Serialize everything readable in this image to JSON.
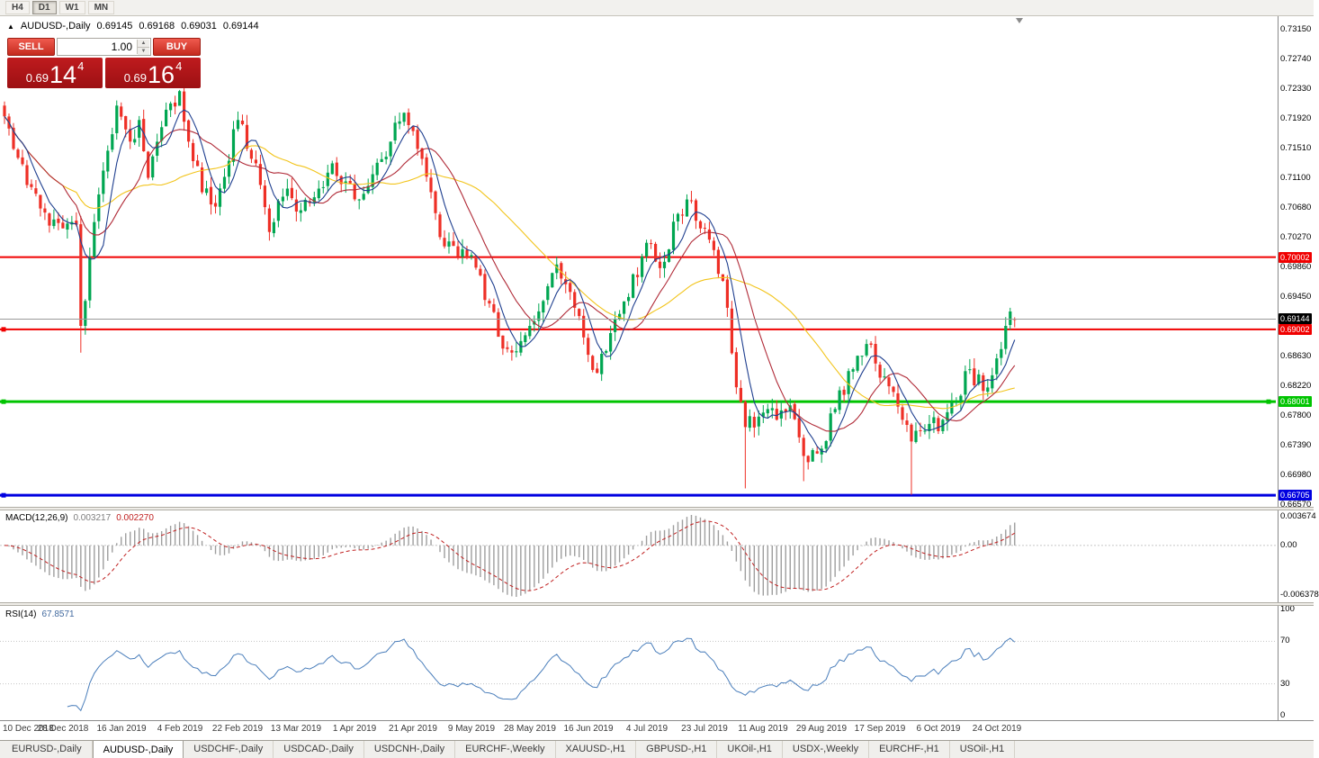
{
  "toolbar": {
    "timeframes": [
      "H4",
      "D1",
      "W1",
      "MN"
    ],
    "active": "D1"
  },
  "chart_header": {
    "marker": "▲",
    "title": "AUDUSD-,Daily",
    "open": "0.69145",
    "high": "0.69168",
    "low": "0.69031",
    "close": "0.69144"
  },
  "trade_panel": {
    "sell_label": "SELL",
    "buy_label": "BUY",
    "volume": "1.00",
    "sell_price": {
      "prefix": "0.69",
      "big": "14",
      "sup": "4"
    },
    "buy_price": {
      "prefix": "0.69",
      "big": "16",
      "sup": "4"
    }
  },
  "price_axis_ticks": [
    "0.73150",
    "0.72740",
    "0.72330",
    "0.71920",
    "0.71510",
    "0.71100",
    "0.70680",
    "0.70270",
    "0.69860",
    "0.69450",
    "0.68630",
    "0.68220",
    "0.67800",
    "0.67390",
    "0.66980",
    "0.66570"
  ],
  "chart_data": {
    "type": "candlestick",
    "symbol": "AUDUSD-",
    "timeframe": "Daily",
    "bid": "0.69144",
    "ask": "0.69164",
    "colors": {
      "up": "#00a651",
      "down": "#ee2f26"
    },
    "current_price_badge": {
      "label": "0.69144",
      "color": "#000000"
    },
    "price_lines": [
      {
        "price": 0.70002,
        "label": "0.70002",
        "color": "#f00000",
        "width": 2,
        "handles": []
      },
      {
        "price": 0.69002,
        "label": "0.69002",
        "color": "#f00000",
        "width": 2,
        "handles": [
          4
        ]
      },
      {
        "price": 0.68001,
        "label": "0.68001",
        "color": "#00c400",
        "width": 3,
        "handles": [
          4,
          1410
        ]
      },
      {
        "price": 0.66705,
        "label": "0.66705",
        "color": "#0000e0",
        "width": 3,
        "handles": [
          4
        ]
      }
    ],
    "moving_averages": [
      {
        "period": 34,
        "color": "#f2c41b"
      },
      {
        "period": 14,
        "color": "#b02a37"
      },
      {
        "period": 6,
        "color": "#1f3f8f"
      }
    ],
    "candles": {
      "count": 226,
      "close_anchors": [
        [
          0,
          0.7195
        ],
        [
          2,
          0.715
        ],
        [
          5,
          0.71
        ],
        [
          9,
          0.7062
        ],
        [
          13,
          0.704
        ],
        [
          16,
          0.7045
        ],
        [
          17,
          0.6905
        ],
        [
          19,
          0.7
        ],
        [
          22,
          0.712
        ],
        [
          25,
          0.721
        ],
        [
          28,
          0.716
        ],
        [
          30,
          0.719
        ],
        [
          32,
          0.711
        ],
        [
          35,
          0.718
        ],
        [
          39,
          0.723
        ],
        [
          41,
          0.716
        ],
        [
          44,
          0.709
        ],
        [
          47,
          0.707
        ],
        [
          52,
          0.719
        ],
        [
          56,
          0.713
        ],
        [
          59,
          0.7035
        ],
        [
          63,
          0.7095
        ],
        [
          66,
          0.7065
        ],
        [
          70,
          0.7095
        ],
        [
          73,
          0.713
        ],
        [
          76,
          0.7105
        ],
        [
          79,
          0.708
        ],
        [
          82,
          0.7115
        ],
        [
          86,
          0.716
        ],
        [
          89,
          0.72
        ],
        [
          92,
          0.715
        ],
        [
          95,
          0.709
        ],
        [
          98,
          0.7015
        ],
        [
          103,
          0.7
        ],
        [
          106,
          0.6975
        ],
        [
          110,
          0.689
        ],
        [
          113,
          0.6868
        ],
        [
          117,
          0.6905
        ],
        [
          121,
          0.696
        ],
        [
          123,
          0.699
        ],
        [
          127,
          0.693
        ],
        [
          130,
          0.6865
        ],
        [
          132,
          0.684
        ],
        [
          135,
          0.6895
        ],
        [
          139,
          0.6945
        ],
        [
          143,
          0.702
        ],
        [
          146,
          0.6985
        ],
        [
          150,
          0.706
        ],
        [
          152,
          0.708
        ],
        [
          155,
          0.704
        ],
        [
          158,
          0.701
        ],
        [
          161,
          0.693
        ],
        [
          163,
          0.682
        ],
        [
          165,
          0.6765
        ],
        [
          169,
          0.6785
        ],
        [
          172,
          0.6775
        ],
        [
          175,
          0.6795
        ],
        [
          178,
          0.6725
        ],
        [
          182,
          0.6735
        ],
        [
          185,
          0.679
        ],
        [
          189,
          0.6845
        ],
        [
          192,
          0.688
        ],
        [
          196,
          0.6835
        ],
        [
          200,
          0.6775
        ],
        [
          202,
          0.6745
        ],
        [
          205,
          0.676
        ],
        [
          209,
          0.6775
        ],
        [
          212,
          0.68
        ],
        [
          215,
          0.6845
        ],
        [
          218,
          0.6815
        ],
        [
          221,
          0.686
        ],
        [
          223,
          0.6905
        ],
        [
          224,
          0.6925
        ],
        [
          225,
          0.69144
        ]
      ],
      "special_lows": {
        "17": 0.6868,
        "165": 0.668,
        "178": 0.669,
        "202": 0.6671
      },
      "special_highs": {
        "152": 0.7085,
        "224": 0.693
      },
      "last": {
        "open": 0.69145,
        "high": 0.69168,
        "low": 0.69031,
        "close": 0.69144
      }
    },
    "macd": {
      "label": "MACD(12,26,9)",
      "fast": 12,
      "slow": 26,
      "signal_period": 9,
      "main_value": "0.003217",
      "signal_value": "0.002270",
      "axis_labels": {
        "top": "0.003674",
        "zero": "0.00",
        "bottom": "-0.006378"
      }
    },
    "rsi": {
      "label": "RSI(14)",
      "period": 14,
      "value": "67.8571",
      "levels": [
        70,
        30
      ],
      "axis_labels": [
        "100",
        "70",
        "30",
        "0"
      ]
    },
    "x_axis_dates": [
      {
        "d": 0,
        "label": "10 Dec 2018"
      },
      {
        "d": 13,
        "label": "28 Dec 2018"
      },
      {
        "d": 26,
        "label": "16 Jan 2019"
      },
      {
        "d": 39,
        "label": "4 Feb 2019"
      },
      {
        "d": 52,
        "label": "22 Feb 2019"
      },
      {
        "d": 65,
        "label": "13 Mar 2019"
      },
      {
        "d": 78,
        "label": "1 Apr 2019"
      },
      {
        "d": 91,
        "label": "21 Apr 2019"
      },
      {
        "d": 104,
        "label": "9 May 2019"
      },
      {
        "d": 117,
        "label": "28 May 2019"
      },
      {
        "d": 130,
        "label": "16 Jun 2019"
      },
      {
        "d": 143,
        "label": "4 Jul 2019"
      },
      {
        "d": 156,
        "label": "23 Jul 2019"
      },
      {
        "d": 169,
        "label": "11 Aug 2019"
      },
      {
        "d": 182,
        "label": "29 Aug 2019"
      },
      {
        "d": 195,
        "label": "17 Sep 2019"
      },
      {
        "d": 208,
        "label": "6 Oct 2019"
      },
      {
        "d": 221,
        "label": "24 Oct 2019"
      }
    ]
  },
  "tabs": [
    {
      "label": "EURUSD-,Daily",
      "active": false
    },
    {
      "label": "AUDUSD-,Daily",
      "active": true
    },
    {
      "label": "USDCHF-,Daily",
      "active": false
    },
    {
      "label": "USDCAD-,Daily",
      "active": false
    },
    {
      "label": "USDCNH-,Daily",
      "active": false
    },
    {
      "label": "EURCHF-,Weekly",
      "active": false
    },
    {
      "label": "XAUUSD-,H1",
      "active": false
    },
    {
      "label": "GBPUSD-,H1",
      "active": false
    },
    {
      "label": "UKOil-,H1",
      "active": false
    },
    {
      "label": "USDX-,Weekly",
      "active": false
    },
    {
      "label": "EURCHF-,H1",
      "active": false
    },
    {
      "label": "USOil-,H1",
      "active": false
    }
  ]
}
